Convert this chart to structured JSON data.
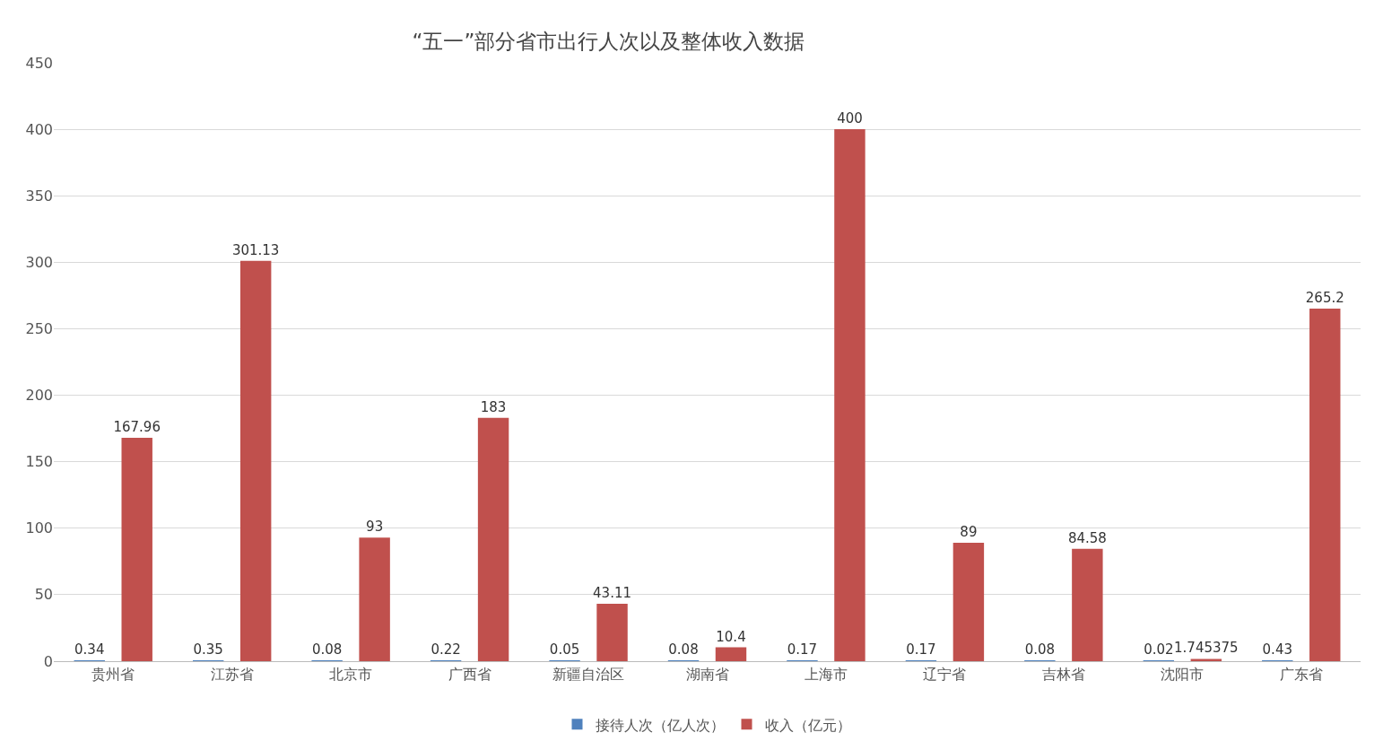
{
  "chart_data": {
    "type": "bar",
    "title": "“五一”部分省市出行人次以及整体收入数据",
    "categories": [
      "贵州省",
      "江苏省",
      "北京市",
      "广西省",
      "新疆自治区",
      "湖南省",
      "上海市",
      "辽宁省",
      "吉林省",
      "沈阳市",
      "广东省"
    ],
    "series": [
      {
        "name": "接待人次（亿人次）",
        "color": "#4f81bd",
        "values": [
          0.34,
          0.35,
          0.08,
          0.22,
          0.05,
          0.08,
          0.17,
          0.17,
          0.08,
          0.02,
          0.43
        ]
      },
      {
        "name": "收入（亿元）",
        "color": "#c0504d",
        "values": [
          167.96,
          301.13,
          93,
          183,
          43.11,
          10.4,
          400,
          89,
          84.58,
          1.745375,
          265.2
        ]
      }
    ],
    "ylim": [
      0,
      450
    ],
    "yticks": [
      0,
      50,
      100,
      150,
      200,
      250,
      300,
      350,
      400,
      450
    ],
    "grid": "y",
    "legend": "bottom",
    "data_labels": true
  }
}
